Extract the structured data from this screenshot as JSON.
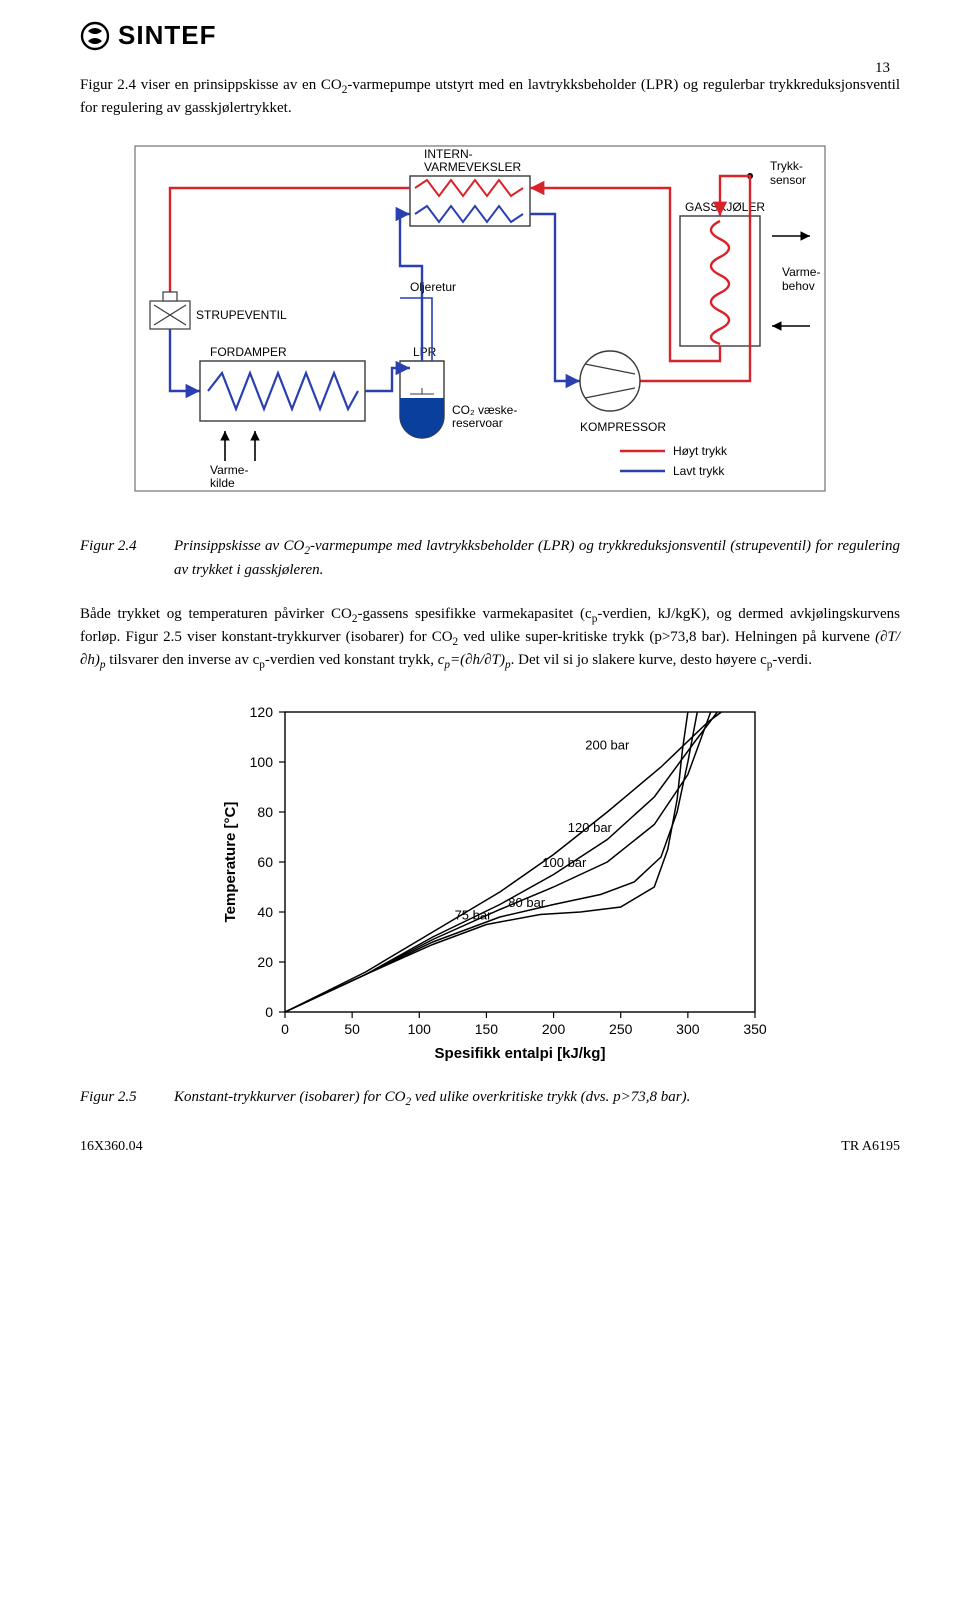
{
  "brand": "SINTEF",
  "page_number": "13",
  "para1_a": "Figur 2.4 viser en prinsippskisse av en CO",
  "para1_b": "-varmepumpe utstyrt med en lavtrykksbeholder (LPR) og regulerbar trykkreduksjonsventil for regulering av gasskjølertrykket.",
  "diagram": {
    "intern_varmeveksler": "INTERN-\nVARMEVEKSLER",
    "trykk_sensor": "Trykk-\nsensor",
    "gasskjoler": "GASSKJØLER",
    "varmebehov": "Varme-\nbehov",
    "oljeretur": "Oljeretur",
    "strupeventil": "STRUPEVENTIL",
    "fordamper": "FORDAMPER",
    "lpr": "LPR",
    "co2_reservoar": "CO₂ væske-\nreservoar",
    "kompressor": "KOMPRESSOR",
    "hoyttrykk": "Høyt trykk",
    "lavttrykk": "Lavt trykk",
    "varmekilde": "Varme-\nkilde",
    "colors": {
      "high": "#d8232a",
      "low": "#2a3fb0",
      "border": "#3a3a3a",
      "lpr_fill": "#0a3f9e"
    }
  },
  "fig24_label": "Figur 2.4",
  "fig24_text_a": "Prinsippskisse av CO",
  "fig24_text_b": "-varmepumpe med lavtrykksbeholder (LPR) og trykkreduksjonsventil (strupeventil) for regulering av trykket i gasskjøleren.",
  "para2_a": "Både trykket og temperaturen påvirker CO",
  "para2_b": "-gassens spesifikke varmekapasitet (c",
  "para2_c": "-verdien, kJ/kgK), og dermed avkjølingskurvens forløp. Figur 2.5 viser konstant-trykkurver (isobarer) for CO",
  "para2_d": " ved ulike super-kritiske trykk (p>73,8 bar). Helningen på kurvene ",
  "para2_e": " tilsvarer den inverse av c",
  "para2_f": "-verdien ved konstant trykk, ",
  "para2_g": ". Det vil si jo slakere kurve, desto høyere c",
  "para2_h": "-verdi.",
  "deriv1": "(∂T/∂h)",
  "deriv2_a": "c",
  "deriv2_b": "=(∂h/∂T)",
  "chart": {
    "xlabel": "Spesifikk entalpi [kJ/kg]",
    "ylabel": "Temperature [°C]",
    "xlim": [
      0,
      350
    ],
    "ylim": [
      0,
      120
    ],
    "xticks": [
      0,
      50,
      100,
      150,
      200,
      250,
      300,
      350
    ],
    "yticks": [
      0,
      20,
      40,
      60,
      80,
      100,
      120
    ],
    "background_color": "#ffffff",
    "border_color": "#000000",
    "line_color": "#000000",
    "line_width": 1.5,
    "label_fontsize": 15,
    "tick_fontsize": 14,
    "series": [
      {
        "label": "75 bar",
        "label_x": 140,
        "label_y": 37,
        "pts": [
          [
            0,
            0
          ],
          [
            60,
            15
          ],
          [
            110,
            27
          ],
          [
            150,
            35
          ],
          [
            190,
            39
          ],
          [
            220,
            40
          ],
          [
            250,
            42
          ],
          [
            275,
            50
          ],
          [
            285,
            65
          ],
          [
            292,
            85
          ],
          [
            296,
            105
          ],
          [
            300,
            120
          ]
        ]
      },
      {
        "label": "80 bar",
        "label_x": 180,
        "label_y": 42,
        "pts": [
          [
            0,
            0
          ],
          [
            60,
            15
          ],
          [
            110,
            28
          ],
          [
            160,
            38
          ],
          [
            200,
            43
          ],
          [
            235,
            47
          ],
          [
            260,
            52
          ],
          [
            280,
            62
          ],
          [
            292,
            80
          ],
          [
            300,
            100
          ],
          [
            307,
            120
          ]
        ]
      },
      {
        "label": "100 bar",
        "label_x": 208,
        "label_y": 58,
        "pts": [
          [
            0,
            0
          ],
          [
            60,
            15
          ],
          [
            110,
            29
          ],
          [
            160,
            41
          ],
          [
            200,
            50
          ],
          [
            240,
            60
          ],
          [
            275,
            75
          ],
          [
            300,
            95
          ],
          [
            317,
            120
          ]
        ]
      },
      {
        "label": "120 bar",
        "label_x": 227,
        "label_y": 72,
        "pts": [
          [
            0,
            0
          ],
          [
            60,
            15
          ],
          [
            110,
            30
          ],
          [
            160,
            43
          ],
          [
            200,
            55
          ],
          [
            240,
            69
          ],
          [
            275,
            86
          ],
          [
            305,
            108
          ],
          [
            322,
            120
          ]
        ]
      },
      {
        "label": "200 bar",
        "label_x": 240,
        "label_y": 105,
        "pts": [
          [
            0,
            0
          ],
          [
            60,
            16
          ],
          [
            110,
            32
          ],
          [
            160,
            48
          ],
          [
            200,
            63
          ],
          [
            240,
            80
          ],
          [
            280,
            98
          ],
          [
            315,
            116
          ],
          [
            325,
            120
          ]
        ]
      }
    ]
  },
  "fig25_label": "Figur 2.5",
  "fig25_text_a": "Konstant-trykkurver (isobarer) for CO",
  "fig25_text_b": " ved ulike overkritiske trykk (dvs. p>73,8 bar).",
  "footer_left": "16X360.04",
  "footer_right": "TR A6195"
}
